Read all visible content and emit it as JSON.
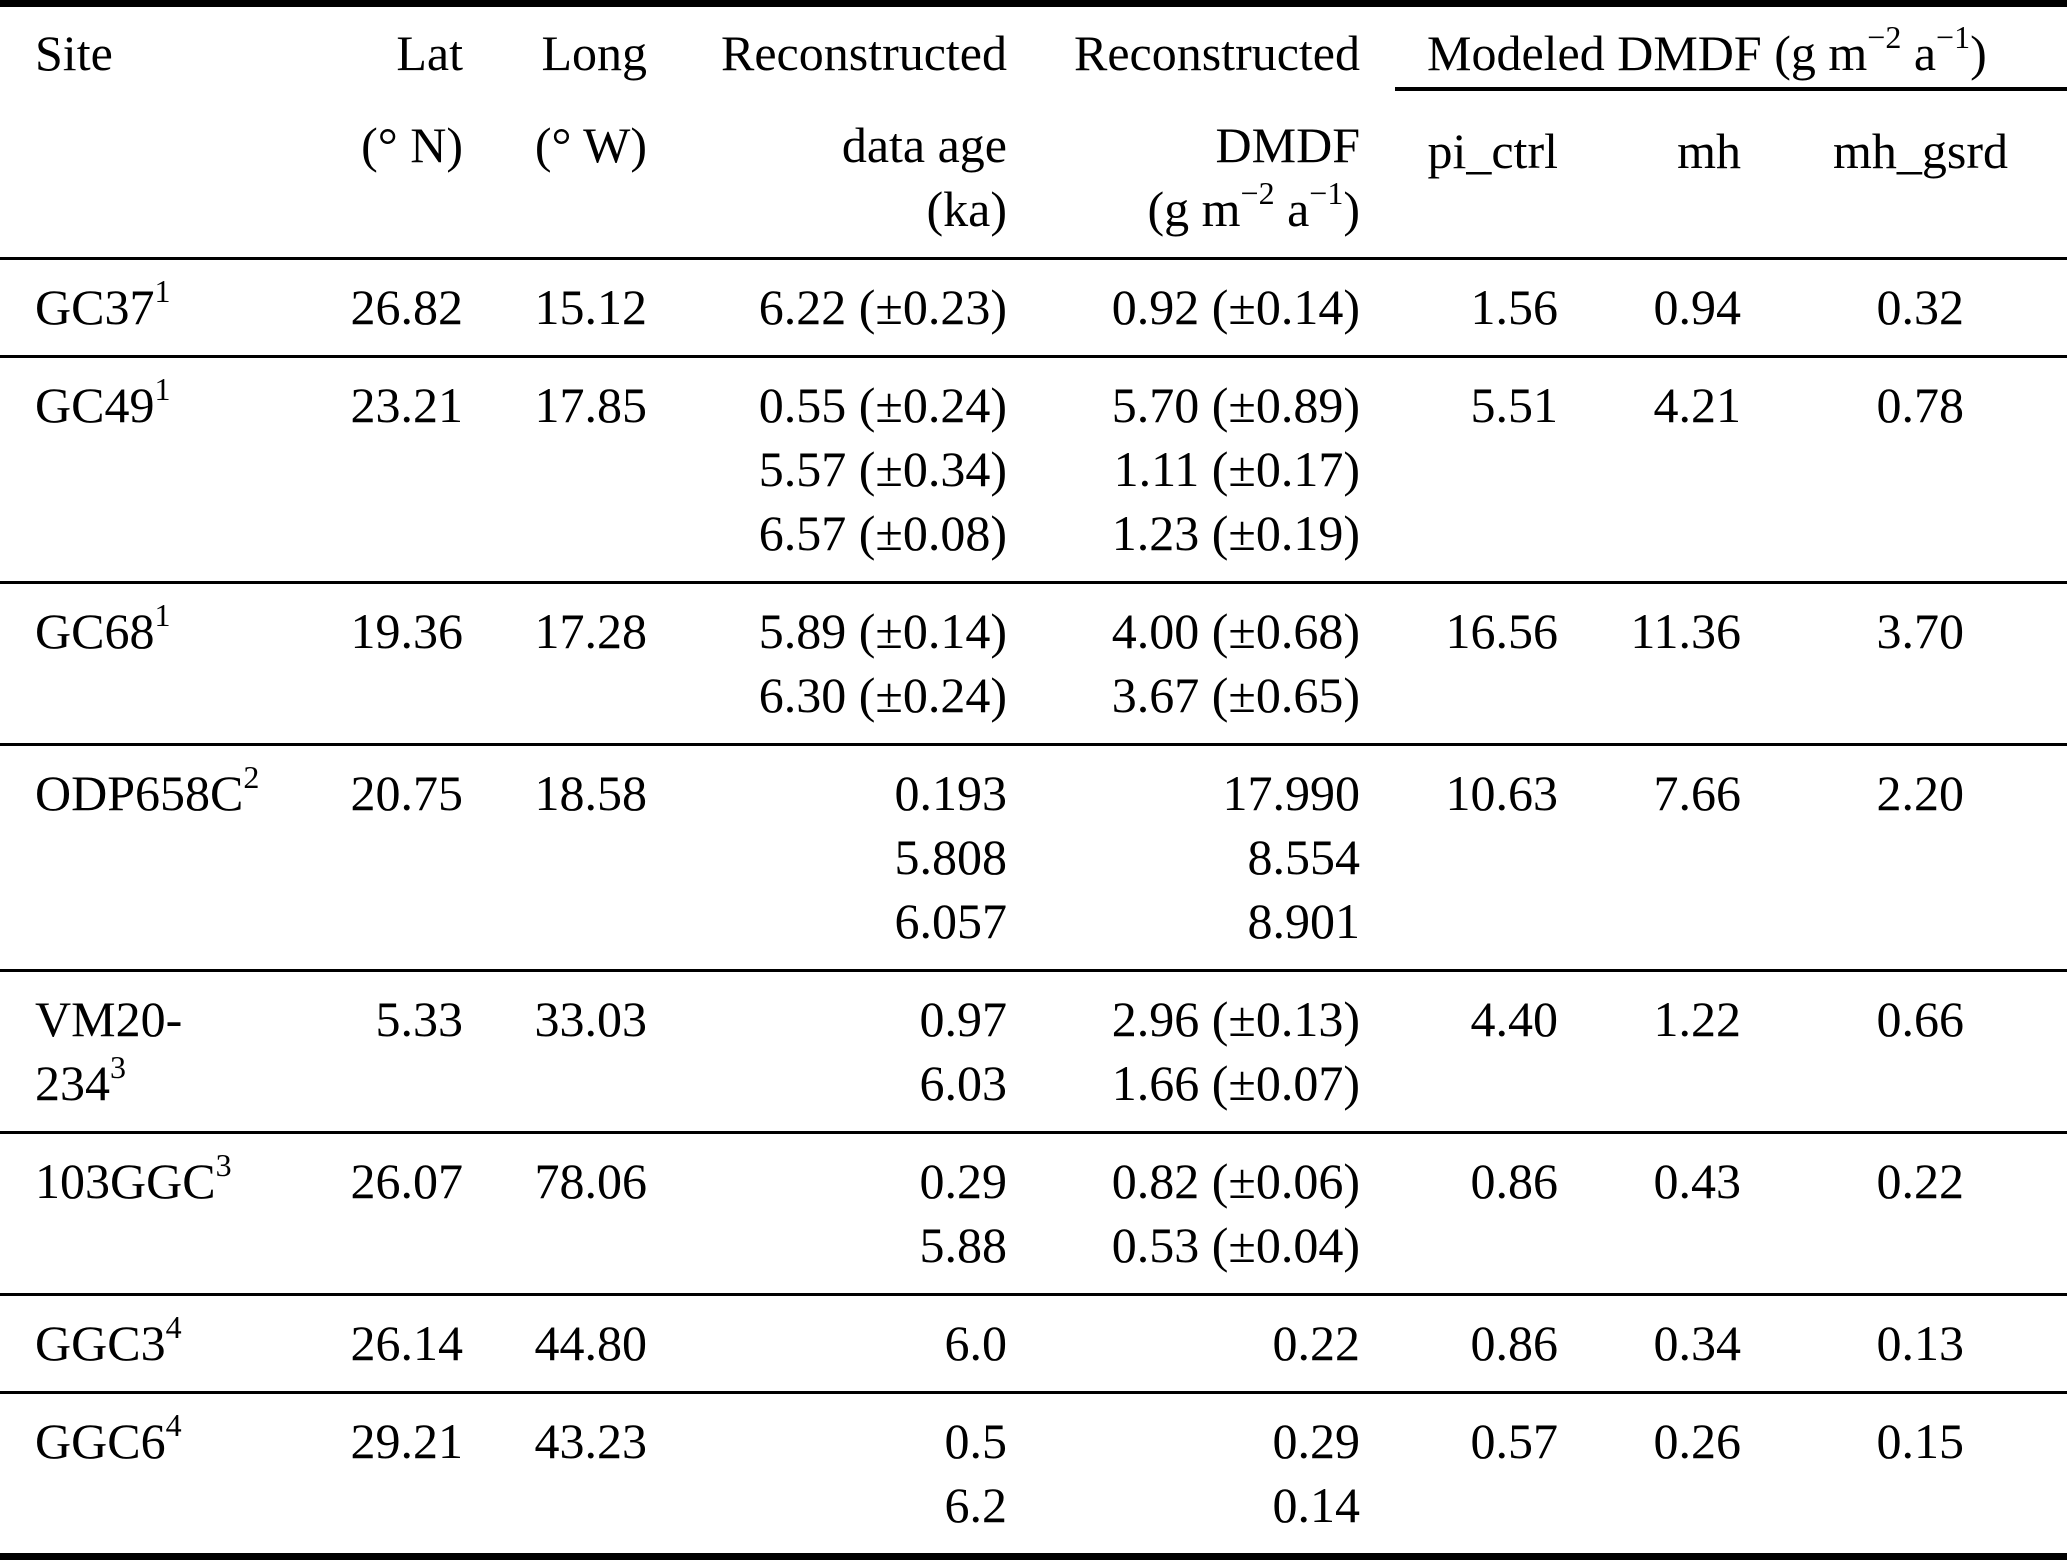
{
  "page": {
    "background": "#ffffff",
    "text_color": "#000000"
  },
  "units": {
    "per_area_year": {
      "pre": "(g m",
      "exp1": "−2",
      "mid": " a",
      "exp2": "−1",
      "post": ")"
    }
  },
  "table": {
    "header": {
      "site": "Site",
      "lat": "Lat",
      "lat_unit": "(° N)",
      "long": "Long",
      "long_unit": "(° W)",
      "age_line1": "Reconstructed",
      "age_line2": "data age",
      "age_unit": "(ka)",
      "dmdf_line1": "Reconstructed",
      "dmdf_line2": "DMDF",
      "modeled_label": "Modeled DMDF ",
      "subcolumns": {
        "pi_ctrl": "pi_ctrl",
        "mh": "mh",
        "mh_gsrd": "mh_gsrd"
      }
    },
    "rows": [
      {
        "site": "GC37",
        "ref": "1",
        "lat": "26.82",
        "long": "15.12",
        "ages": [
          "6.22 (±0.23)"
        ],
        "dmdf": [
          "0.92 (±0.14)"
        ],
        "pi_ctrl": "1.56",
        "mh": "0.94",
        "mh_gsrd": "0.32"
      },
      {
        "site": "GC49",
        "ref": "1",
        "lat": "23.21",
        "long": "17.85",
        "ages": [
          "0.55 (±0.24)",
          "5.57 (±0.34)",
          "6.57 (±0.08)"
        ],
        "dmdf": [
          "5.70 (±0.89)",
          "1.11 (±0.17)",
          "1.23 (±0.19)"
        ],
        "pi_ctrl": "5.51",
        "mh": "4.21",
        "mh_gsrd": "0.78"
      },
      {
        "site": "GC68",
        "ref": "1",
        "lat": "19.36",
        "long": "17.28",
        "ages": [
          "5.89 (±0.14)",
          "6.30 (±0.24)"
        ],
        "dmdf": [
          "4.00 (±0.68)",
          "3.67 (±0.65)"
        ],
        "pi_ctrl": "16.56",
        "mh": "11.36",
        "mh_gsrd": "3.70"
      },
      {
        "site": "ODP658C",
        "ref": "2",
        "lat": "20.75",
        "long": "18.58",
        "ages": [
          "0.193",
          "5.808",
          "6.057"
        ],
        "dmdf": [
          "17.990",
          "8.554",
          "8.901"
        ],
        "pi_ctrl": "10.63",
        "mh": "7.66",
        "mh_gsrd": "2.20"
      },
      {
        "site": "VM20-234",
        "ref": "3",
        "lat": "5.33",
        "long": "33.03",
        "ages": [
          "0.97",
          "6.03"
        ],
        "dmdf": [
          "2.96 (±0.13)",
          "1.66 (±0.07)"
        ],
        "pi_ctrl": "4.40",
        "mh": "1.22",
        "mh_gsrd": "0.66"
      },
      {
        "site": "103GGC",
        "ref": "3",
        "lat": "26.07",
        "long": "78.06",
        "ages": [
          "0.29",
          "5.88"
        ],
        "dmdf": [
          "0.82 (±0.06)",
          "0.53 (±0.04)"
        ],
        "pi_ctrl": "0.86",
        "mh": "0.43",
        "mh_gsrd": "0.22"
      },
      {
        "site": "GGC3",
        "ref": "4",
        "lat": "26.14",
        "long": "44.80",
        "ages": [
          "6.0"
        ],
        "dmdf": [
          "0.22"
        ],
        "pi_ctrl": "0.86",
        "mh": "0.34",
        "mh_gsrd": "0.13"
      },
      {
        "site": "GGC6",
        "ref": "4",
        "lat": "29.21",
        "long": "43.23",
        "ages": [
          "0.5",
          "6.2"
        ],
        "dmdf": [
          "0.29",
          "0.14"
        ],
        "pi_ctrl": "0.57",
        "mh": "0.26",
        "mh_gsrd": "0.15"
      }
    ]
  }
}
